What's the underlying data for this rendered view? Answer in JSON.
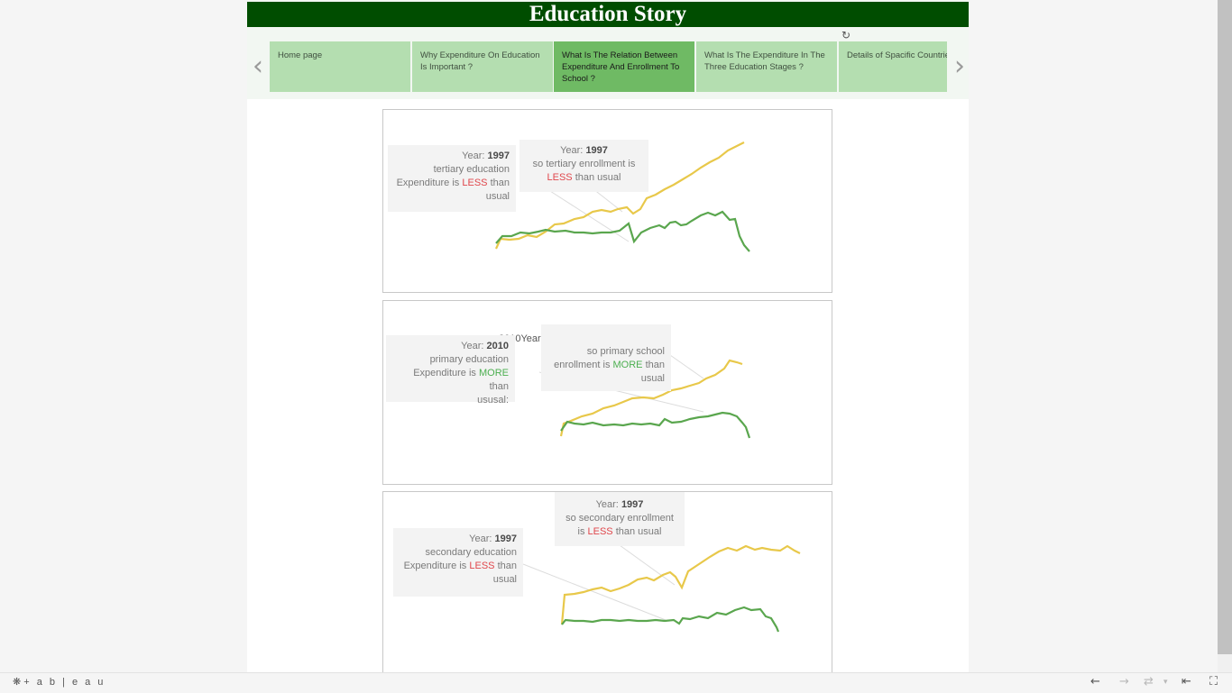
{
  "story": {
    "title": "Education Story",
    "tabs": [
      {
        "label": "Home page",
        "active": false
      },
      {
        "label": "Why Expenditure On Education Is Important ?",
        "active": false
      },
      {
        "label": "What Is The Relation Between Expenditure And Enrollment To School ?",
        "active": true
      },
      {
        "label": "What Is The Expenditure In The Three Education Stages ?",
        "active": false
      },
      {
        "label": "Details of Spacific Countries",
        "active": false
      }
    ]
  },
  "colors": {
    "title_bg": "#004d00",
    "tab_bg": "#b4deb0",
    "tab_active_bg": "#6fba64",
    "enrollment_line": "#e8c84a",
    "expenditure_line": "#5aa64e",
    "less": "#e0474c",
    "more": "#4caf50"
  },
  "icons": {
    "nav_prev": "chevron-left-icon",
    "nav_next": "chevron-right-icon",
    "refresh": "refresh-icon",
    "tableau": "tableau-logo"
  },
  "panels": [
    {
      "name": "tertiary",
      "left_anno": {
        "year_label": "Year:",
        "year": "1997",
        "line1": "tertiary education",
        "pre": "Expenditure is",
        "keyword": "LESS",
        "post": "than",
        "line3": "usual"
      },
      "right_anno": {
        "year_label": "Year:",
        "year": "1997",
        "pre": "so tertiary enrollment is",
        "keyword": "LESS",
        "post": "than usual"
      }
    },
    {
      "name": "primary",
      "stray": "2010Year:",
      "left_anno": {
        "year_label": "Year:",
        "year": "2010",
        "line1": "primary education",
        "pre": "Expenditure is",
        "keyword": "MORE",
        "post": "than",
        "line3": "ususal:"
      },
      "right_anno": {
        "line1": "so primary school",
        "pre": "enrollment is",
        "keyword": "MORE",
        "post": "than",
        "line3": "usual"
      }
    },
    {
      "name": "secondary",
      "left_anno": {
        "year_label": "Year:",
        "year": "1997",
        "line1": "secondary education",
        "pre": "Expenditure is",
        "keyword": "LESS",
        "post": "than",
        "line3": "usual"
      },
      "right_anno": {
        "year_label": "Year:",
        "year": "1997",
        "line1": "so secondary enrollment",
        "pre": "is",
        "keyword": "LESS",
        "post": "than usual"
      }
    }
  ],
  "footer": {
    "brand": "+ a b | e a u"
  }
}
